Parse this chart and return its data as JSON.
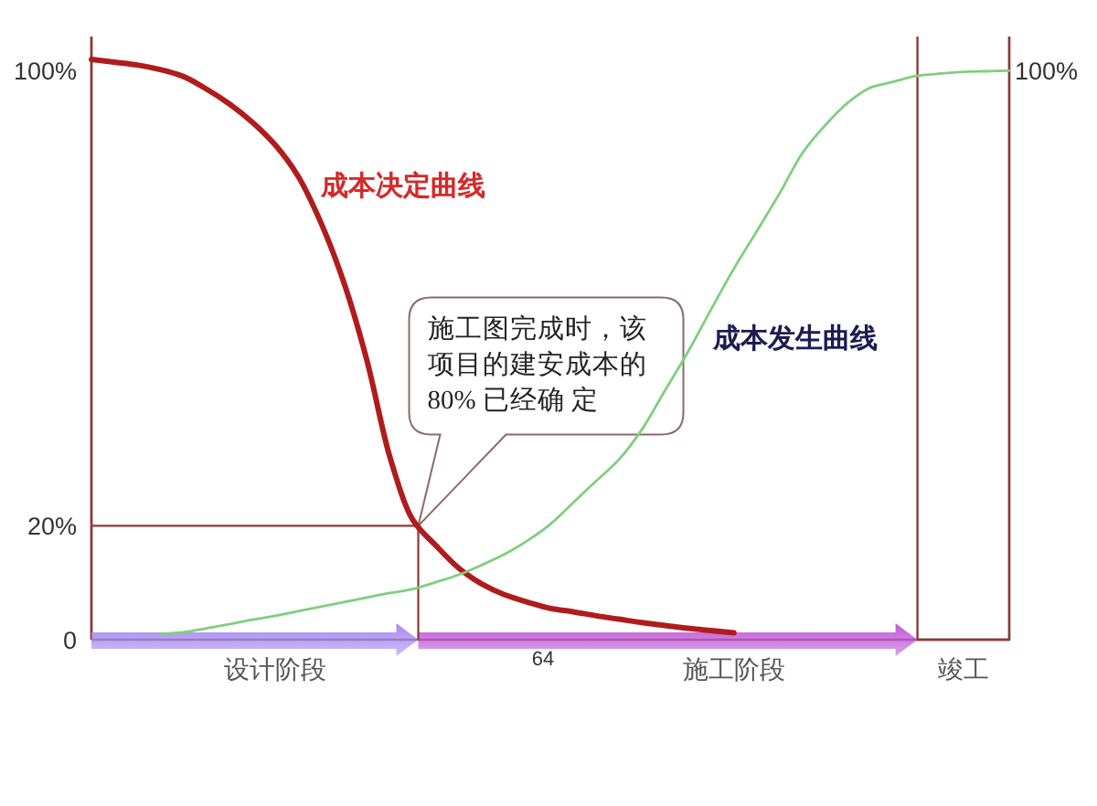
{
  "chart_data": {
    "type": "line",
    "ylim": [
      0,
      106
    ],
    "yticks": [
      0,
      {
        "value": 20,
        "label": "20%"
      },
      {
        "value": 100,
        "label": "100%"
      }
    ],
    "categories": [
      null,
      null,
      null,
      null,
      null,
      null,
      null,
      null,
      "设计阶段",
      null,
      null,
      null,
      null,
      null,
      null,
      null,
      null,
      null,
      null,
      null,
      null,
      null,
      null,
      null,
      null,
      null,
      null,
      null,
      "施工阶段",
      null,
      null,
      null,
      null,
      null,
      null,
      null,
      null,
      null,
      "竣工",
      null,
      null
    ],
    "series": [
      {
        "name": "成本决定曲线",
        "color": "#b01c1c",
        "values": [
          102,
          101.5,
          101,
          100.2,
          99,
          96.8,
          94.2,
          91,
          87,
          81.5,
          73.3,
          62.8,
          49.2,
          32.2,
          21.1,
          16.6,
          12.6,
          9.8,
          7.9,
          6.6,
          5.5,
          4.9,
          4.2,
          3.6,
          3,
          2.5,
          2,
          1.6,
          1.2,
          null,
          null,
          null,
          null,
          null,
          null,
          null,
          null,
          null,
          null,
          null,
          null
        ]
      },
      {
        "name": "成本发生曲线",
        "color": "#7fcf7f",
        "values": [
          null,
          null,
          null,
          1,
          1.3,
          2,
          2.7,
          3.5,
          4.2,
          5,
          5.8,
          6.6,
          7.4,
          8.2,
          8.9,
          10.1,
          11.4,
          13.1,
          15,
          17.4,
          20.3,
          24.1,
          27.9,
          31.7,
          37,
          43.8,
          50.6,
          58,
          65.2,
          71.8,
          78.5,
          85.6,
          90.5,
          94.5,
          97.1,
          98.1,
          99.1,
          99.5,
          99.8,
          99.9,
          100
        ],
        "value_labels": [
          null,
          null,
          null,
          null,
          null,
          null,
          null,
          null,
          null,
          null,
          null,
          null,
          null,
          null,
          null,
          null,
          null,
          null,
          null,
          null,
          null,
          null,
          null,
          null,
          null,
          null,
          null,
          null,
          null,
          null,
          null,
          null,
          null,
          null,
          null,
          null,
          null,
          null,
          null,
          null,
          "100%"
        ]
      }
    ],
    "ref_lines": [
      {
        "axis": "y",
        "value": 20,
        "color": "#8b3a3a"
      }
    ],
    "annotations": [
      "施工图完成时，该项目的建安成本的80% 已经确 定",
      "64"
    ]
  }
}
